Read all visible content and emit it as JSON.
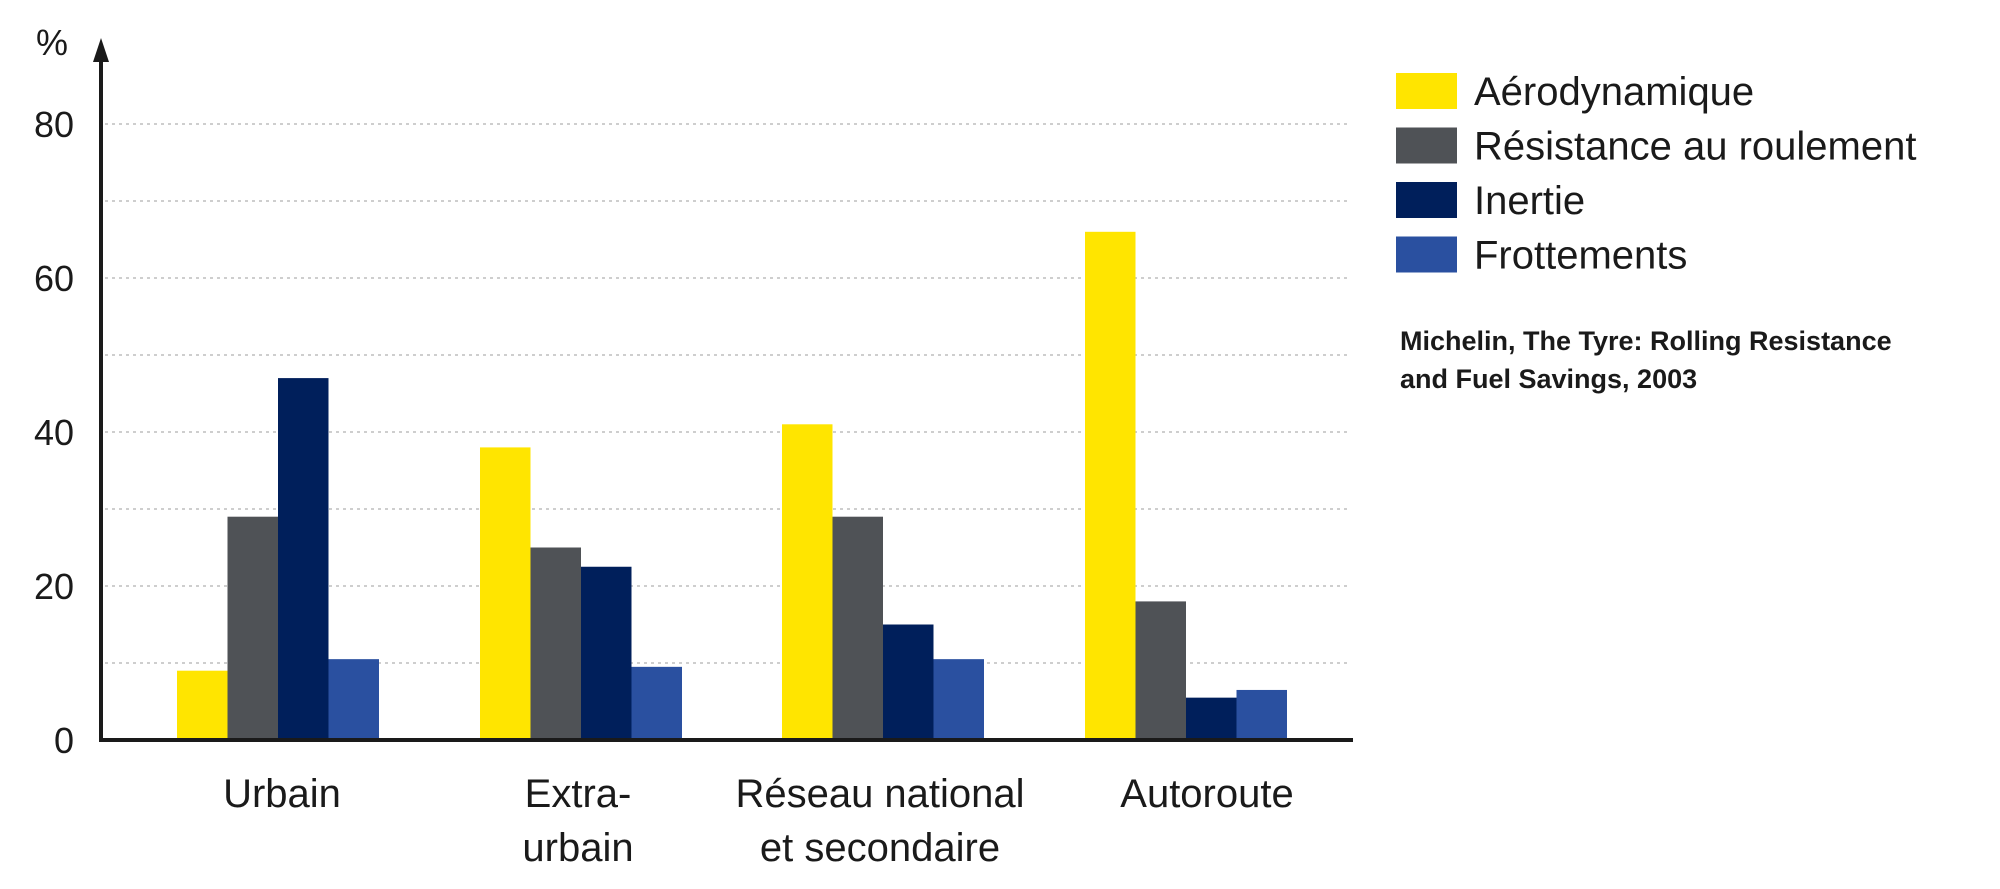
{
  "chart_data": {
    "type": "bar",
    "ylabel": "%",
    "ylim": [
      0,
      90
    ],
    "yticks": [
      "0",
      "20",
      "40",
      "60",
      "80"
    ],
    "grid": true,
    "legend_position": "top-right",
    "categories": [
      [
        "Urbain"
      ],
      [
        "Extra-",
        "urbain"
      ],
      [
        "Réseau national",
        "et secondaire"
      ],
      [
        "Autoroute"
      ]
    ],
    "series": [
      {
        "name": "Aérodynamique",
        "color": "#ffe500",
        "values": [
          9,
          38,
          41,
          66
        ]
      },
      {
        "name": "Résistance au roulement",
        "color": "#4f5256",
        "values": [
          29,
          25,
          29,
          18
        ]
      },
      {
        "name": "Inertie",
        "color": "#001f5b",
        "values": [
          47,
          22.5,
          15,
          5.5
        ]
      },
      {
        "name": "Frottements",
        "color": "#2a50a0",
        "values": [
          10.5,
          9.5,
          10.5,
          6.5
        ]
      }
    ],
    "source": [
      "Michelin, The Tyre: Rolling Resistance",
      "and Fuel Savings, 2003"
    ]
  }
}
